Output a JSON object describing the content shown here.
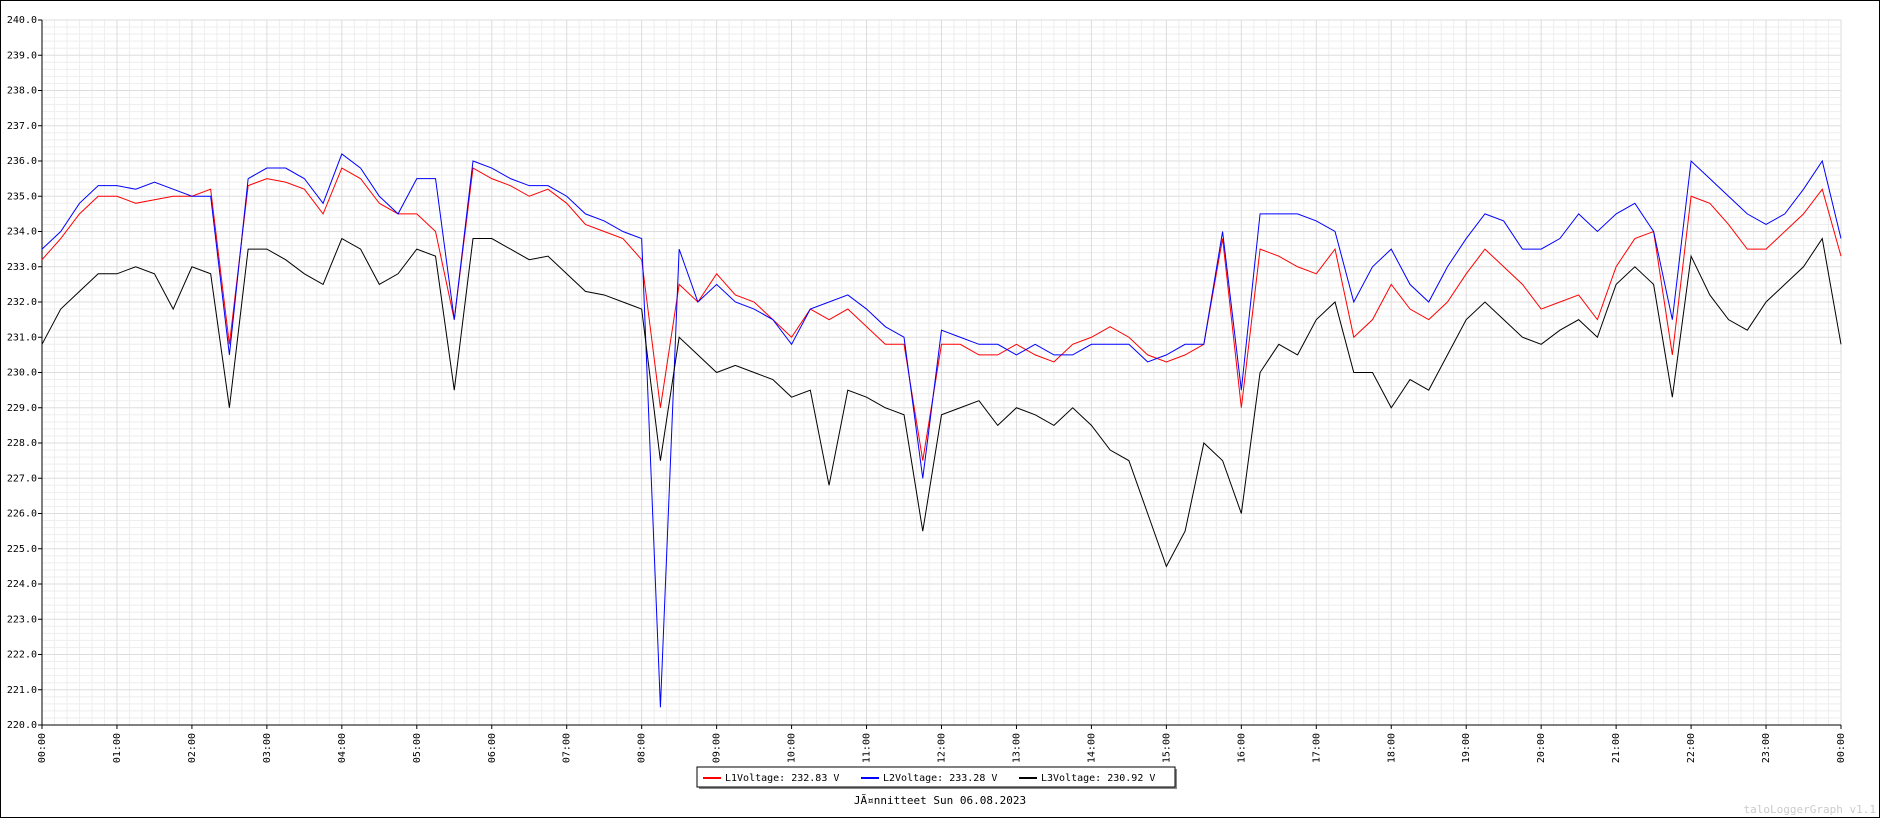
{
  "chart_data": {
    "type": "line",
    "title": "JÃ¤nnitteet Sun 06.08.2023",
    "watermark": "taloLoggerGraph v1.1",
    "x": [
      0,
      0.25,
      0.5,
      0.75,
      1,
      1.25,
      1.5,
      1.75,
      2,
      2.25,
      2.5,
      2.75,
      3,
      3.25,
      3.5,
      3.75,
      4,
      4.25,
      4.5,
      4.75,
      5,
      5.25,
      5.5,
      5.75,
      6,
      6.25,
      6.5,
      6.75,
      7,
      7.25,
      7.5,
      7.75,
      8,
      8.25,
      8.5,
      8.75,
      9,
      9.25,
      9.5,
      9.75,
      10,
      10.25,
      10.5,
      10.75,
      11,
      11.25,
      11.5,
      11.75,
      12,
      12.25,
      12.5,
      12.75,
      13,
      13.25,
      13.5,
      13.75,
      14,
      14.25,
      14.5,
      14.75,
      15,
      15.25,
      15.5,
      15.75,
      16,
      16.25,
      16.5,
      16.75,
      17,
      17.25,
      17.5,
      17.75,
      18,
      18.25,
      18.5,
      18.75,
      19,
      19.25,
      19.5,
      19.75,
      20,
      20.25,
      20.5,
      20.75,
      21,
      21.25,
      21.5,
      21.75,
      22,
      22.25,
      22.5,
      22.75,
      23,
      23.25,
      23.5,
      23.75,
      24
    ],
    "series": [
      {
        "name": "L1Voltage: 232.83 V",
        "color": "#ff0000",
        "values": [
          233.2,
          233.8,
          234.5,
          235.0,
          235.0,
          234.8,
          234.9,
          235.0,
          235.0,
          235.2,
          230.8,
          235.3,
          235.5,
          235.4,
          235.2,
          234.5,
          235.8,
          235.5,
          234.8,
          234.5,
          234.5,
          234.0,
          231.5,
          235.8,
          235.5,
          235.3,
          235.0,
          235.2,
          234.8,
          234.2,
          234.0,
          233.8,
          233.2,
          229.0,
          232.5,
          232.0,
          232.8,
          232.2,
          232.0,
          231.5,
          231.0,
          231.8,
          231.5,
          231.8,
          231.3,
          230.8,
          230.8,
          227.5,
          230.8,
          230.8,
          230.5,
          230.5,
          230.8,
          230.5,
          230.3,
          230.8,
          231.0,
          231.3,
          231.0,
          230.5,
          230.3,
          230.5,
          230.8,
          233.8,
          229.0,
          233.5,
          233.3,
          233.0,
          232.8,
          233.5,
          231.0,
          231.5,
          232.5,
          231.8,
          231.5,
          232.0,
          232.8,
          233.5,
          233.0,
          232.5,
          231.8,
          232.0,
          232.2,
          231.5,
          233.0,
          233.8,
          234.0,
          230.5,
          235.0,
          234.8,
          234.2,
          233.5,
          233.5,
          234.0,
          234.5,
          235.2,
          233.3
        ]
      },
      {
        "name": "L2Voltage: 233.28 V",
        "color": "#0000ff",
        "values": [
          233.5,
          234.0,
          234.8,
          235.3,
          235.3,
          235.2,
          235.4,
          235.2,
          235.0,
          235.0,
          230.5,
          235.5,
          235.8,
          235.8,
          235.5,
          234.8,
          236.2,
          235.8,
          235.0,
          234.5,
          235.5,
          235.5,
          231.5,
          236.0,
          235.8,
          235.5,
          235.3,
          235.3,
          235.0,
          234.5,
          234.3,
          234.0,
          233.8,
          220.5,
          233.5,
          232.0,
          232.5,
          232.0,
          231.8,
          231.5,
          230.8,
          231.8,
          232.0,
          232.2,
          231.8,
          231.3,
          231.0,
          227.0,
          231.2,
          231.0,
          230.8,
          230.8,
          230.5,
          230.8,
          230.5,
          230.5,
          230.8,
          230.8,
          230.8,
          230.3,
          230.5,
          230.8,
          230.8,
          234.0,
          229.5,
          234.5,
          234.5,
          234.5,
          234.3,
          234.0,
          232.0,
          233.0,
          233.5,
          232.5,
          232.0,
          233.0,
          233.8,
          234.5,
          234.3,
          233.5,
          233.5,
          233.8,
          234.5,
          234.0,
          234.5,
          234.8,
          234.0,
          231.5,
          236.0,
          235.5,
          235.0,
          234.5,
          234.2,
          234.5,
          235.2,
          236.0,
          233.8
        ]
      },
      {
        "name": "L3Voltage: 230.92 V",
        "color": "#000000",
        "values": [
          230.8,
          231.8,
          232.3,
          232.8,
          232.8,
          233.0,
          232.8,
          231.8,
          233.0,
          232.8,
          229.0,
          233.5,
          233.5,
          233.2,
          232.8,
          232.5,
          233.8,
          233.5,
          232.5,
          232.8,
          233.5,
          233.3,
          229.5,
          233.8,
          233.8,
          233.5,
          233.2,
          233.3,
          232.8,
          232.3,
          232.2,
          232.0,
          231.8,
          227.5,
          231.0,
          230.5,
          230.0,
          230.2,
          230.0,
          229.8,
          229.3,
          229.5,
          226.8,
          229.5,
          229.3,
          229.0,
          228.8,
          225.5,
          228.8,
          229.0,
          229.2,
          228.5,
          229.0,
          228.8,
          228.5,
          229.0,
          228.5,
          227.8,
          227.5,
          226.0,
          224.5,
          225.5,
          228.0,
          227.5,
          226.0,
          230.0,
          230.8,
          230.5,
          231.5,
          232.0,
          230.0,
          230.0,
          229.0,
          229.8,
          229.5,
          230.5,
          231.5,
          232.0,
          231.5,
          231.0,
          230.8,
          231.2,
          231.5,
          231.0,
          232.5,
          233.0,
          232.5,
          229.3,
          233.3,
          232.2,
          231.5,
          231.2,
          232.0,
          232.5,
          233.0,
          233.8,
          230.8
        ]
      }
    ],
    "xlim": [
      0,
      24
    ],
    "xticks": [
      {
        "value": 0,
        "label": "00:00"
      },
      {
        "value": 1,
        "label": "01:00"
      },
      {
        "value": 2,
        "label": "02:00"
      },
      {
        "value": 3,
        "label": "03:00"
      },
      {
        "value": 4,
        "label": "04:00"
      },
      {
        "value": 5,
        "label": "05:00"
      },
      {
        "value": 6,
        "label": "06:00"
      },
      {
        "value": 7,
        "label": "07:00"
      },
      {
        "value": 8,
        "label": "08:00"
      },
      {
        "value": 9,
        "label": "09:00"
      },
      {
        "value": 10,
        "label": "10:00"
      },
      {
        "value": 11,
        "label": "11:00"
      },
      {
        "value": 12,
        "label": "12:00"
      },
      {
        "value": 13,
        "label": "13:00"
      },
      {
        "value": 14,
        "label": "14:00"
      },
      {
        "value": 15,
        "label": "15:00"
      },
      {
        "value": 16,
        "label": "16:00"
      },
      {
        "value": 17,
        "label": "17:00"
      },
      {
        "value": 18,
        "label": "18:00"
      },
      {
        "value": 19,
        "label": "19:00"
      },
      {
        "value": 20,
        "label": "20:00"
      },
      {
        "value": 21,
        "label": "21:00"
      },
      {
        "value": 22,
        "label": "22:00"
      },
      {
        "value": 23,
        "label": "23:00"
      },
      {
        "value": 24,
        "label": "00:00"
      }
    ],
    "ylim": [
      220,
      240
    ],
    "yticks": [
      {
        "value": 220,
        "label": "220.0"
      },
      {
        "value": 221,
        "label": "221.0"
      },
      {
        "value": 222,
        "label": "222.0"
      },
      {
        "value": 223,
        "label": "223.0"
      },
      {
        "value": 224,
        "label": "224.0"
      },
      {
        "value": 225,
        "label": "225.0"
      },
      {
        "value": 226,
        "label": "226.0"
      },
      {
        "value": 227,
        "label": "227.0"
      },
      {
        "value": 228,
        "label": "228.0"
      },
      {
        "value": 229,
        "label": "229.0"
      },
      {
        "value": 230,
        "label": "230.0"
      },
      {
        "value": 231,
        "label": "231.0"
      },
      {
        "value": 232,
        "label": "232.0"
      },
      {
        "value": 233,
        "label": "233.0"
      },
      {
        "value": 234,
        "label": "234.0"
      },
      {
        "value": 235,
        "label": "235.0"
      },
      {
        "value": 236,
        "label": "236.0"
      },
      {
        "value": 237,
        "label": "237.0"
      },
      {
        "value": 238,
        "label": "238.0"
      },
      {
        "value": 239,
        "label": "239.0"
      },
      {
        "value": 240,
        "label": "240.0"
      }
    ],
    "grid": true,
    "minor_grid": true,
    "legend": "bottom"
  }
}
